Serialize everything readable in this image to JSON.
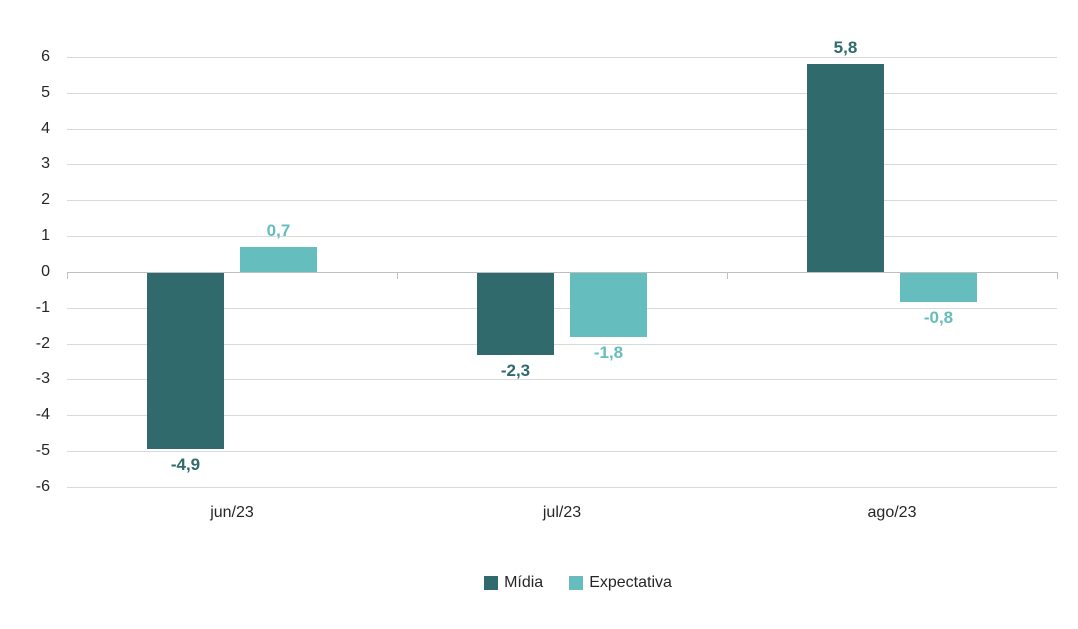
{
  "chart_data": {
    "type": "bar",
    "title": "",
    "xlabel": "",
    "ylabel": "",
    "categories": [
      "jun/23",
      "jul/23",
      "ago/23"
    ],
    "series": [
      {
        "name": "Mídia",
        "color": "#306A6C",
        "values": [
          -4.9,
          -2.3,
          5.8
        ],
        "labels": [
          "-4,9",
          "-2,3",
          "5,8"
        ]
      },
      {
        "name": "Expectativa",
        "color": "#66BDBE",
        "values": [
          0.7,
          -1.8,
          -0.8
        ],
        "labels": [
          "0,7",
          "-1,8",
          "-0,8"
        ]
      }
    ],
    "ylim": [
      -6,
      6
    ],
    "y_ticks": [
      6,
      5,
      4,
      3,
      2,
      1,
      0,
      -1,
      -2,
      -3,
      -4,
      -5,
      -6
    ],
    "grid": true,
    "legend_position": "bottom",
    "decimal_separator": ",",
    "colors": {
      "gridline": "#D9D9D9",
      "zero_axis": "#BFBFBF",
      "text": "#262626"
    }
  }
}
